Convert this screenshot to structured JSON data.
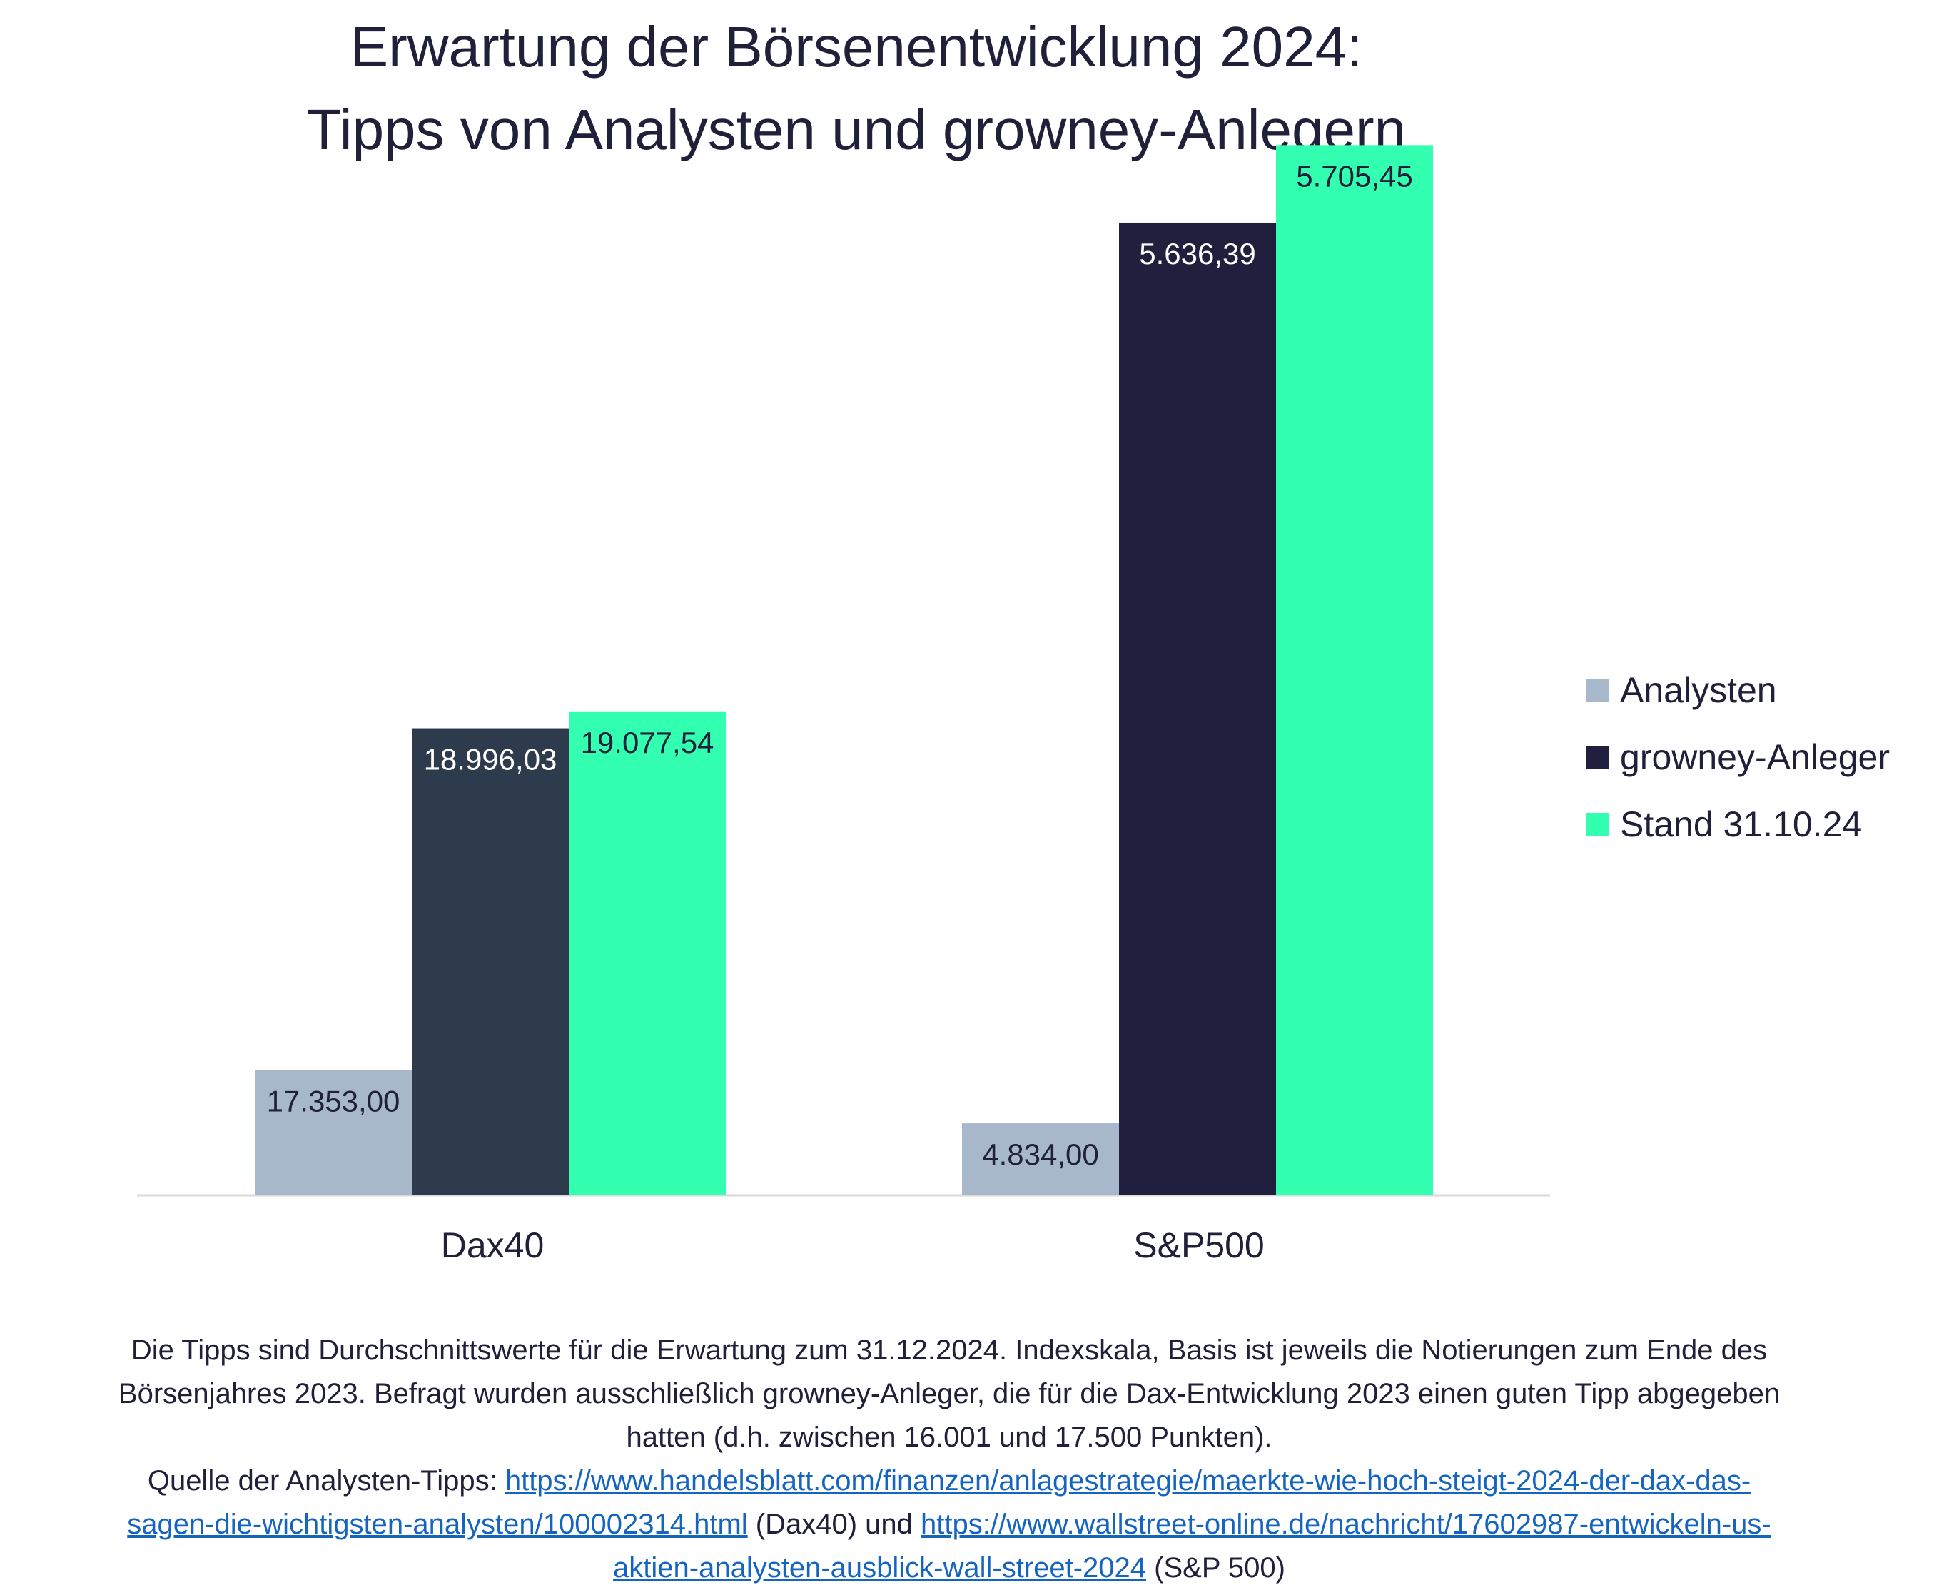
{
  "title_line1": "Erwartung der Börsenentwicklung 2024:",
  "title_line2": "Tipps von Analysten und growney-Anlegern",
  "chart_data": {
    "type": "bar",
    "title": "Erwartung der Börsenentwicklung 2024: Tipps von Analysten und growney-Anlegern",
    "categories": [
      "Dax40",
      "S&P500"
    ],
    "series": [
      {
        "name": "Analysten",
        "color": "#a7b8ca",
        "values": [
          17353.0,
          4834.0
        ],
        "labels": [
          "17.353,00",
          "4.834,00"
        ]
      },
      {
        "name": "growney-Anleger",
        "colors": [
          "#2d3b4c",
          "#20203e"
        ],
        "values": [
          18996.03,
          5636.39
        ],
        "labels": [
          "18.996,03",
          "5.636,39"
        ]
      },
      {
        "name": "Stand 31.10.24",
        "color": "#33ffb0",
        "values": [
          19077.54,
          5705.45
        ],
        "labels": [
          "19.077,54",
          "5.705,45"
        ]
      }
    ],
    "note": "Each category uses its own index scale based on the end-of-2023 level",
    "legend_position": "right",
    "xlabel": "",
    "ylabel": "",
    "grid": false
  },
  "legend": {
    "items": [
      {
        "label": "Analysten",
        "color": "#a7b8ca"
      },
      {
        "label": "growney-Anleger",
        "color": "#20203e"
      },
      {
        "label": "Stand 31.10.24",
        "color": "#33ffb0"
      }
    ]
  },
  "footnote": {
    "text1": "Die Tipps sind Durchschnittswerte für die Erwartung zum 31.12.2024. Indexskala, Basis ist jeweils die Notierungen zum Ende des Börsenjahres 2023. Befragt wurden ausschließlich growney-Anleger, die für die Dax-Entwicklung 2023 einen guten Tipp abgegeben hatten (d.h. zwischen 16.001 und 17.500 Punkten).",
    "source_prefix": "Quelle der Analysten-Tipps: ",
    "link1": "https://www.handelsblatt.com/finanzen/anlagestrategie/maerkte-wie-hoch-steigt-2024-der-dax-das-sagen-die-wichtigsten-analysten/100002314.html",
    "link1_suffix": " (Dax40)",
    "connector": " und ",
    "link2": "https://www.wallstreet-online.de/nachricht/17602987-entwickeln-us-aktien-analysten-ausblick-wall-street-2024",
    "link2_suffix": " (S&P 500)"
  }
}
